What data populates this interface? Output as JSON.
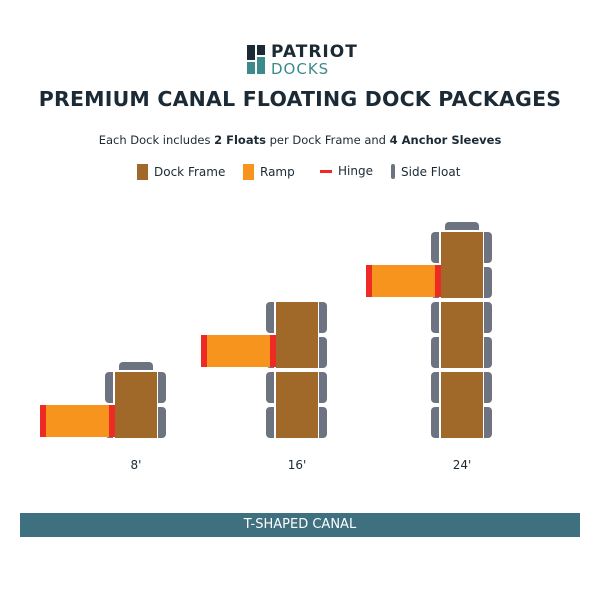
{
  "logo": {
    "line1": "PATRIOT",
    "line2": "DOCKS"
  },
  "title": "PREMIUM CANAL FLOATING DOCK PACKAGES",
  "subtitle": {
    "pre": "Each Dock includes ",
    "b1": "2 Floats",
    "mid": " per Dock Frame and ",
    "b2": "4 Anchor Sleeves"
  },
  "legend": [
    {
      "label": "Dock Frame",
      "color": "#a0692a"
    },
    {
      "label": "Ramp",
      "color": "#f7941d"
    },
    {
      "label": "Hinge",
      "color": "#ee2a24"
    },
    {
      "label": "Side Float",
      "color": "#6e7381"
    }
  ],
  "packages": [
    {
      "label": "8'",
      "frames": 1
    },
    {
      "label": "16'",
      "frames": 2
    },
    {
      "label": "24'",
      "frames": 3
    }
  ],
  "banner": "T-SHAPED CANAL"
}
